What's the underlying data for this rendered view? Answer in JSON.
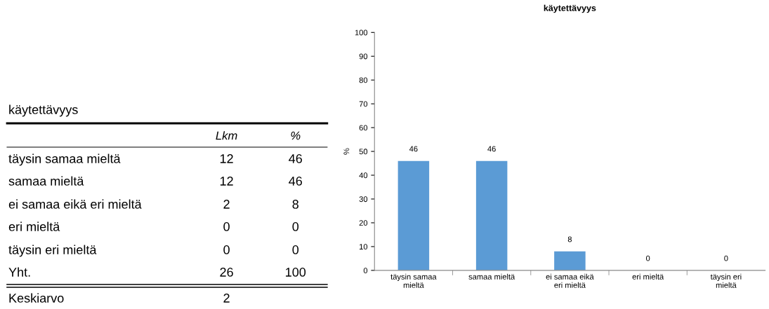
{
  "chart_data": [
    {
      "type": "other",
      "title": "käytettävyys",
      "data_labels": true,
      "categories": [
        "täysin samaa mieltä",
        "samaa mieltä",
        "ei samaa eikä eri mieltä",
        "eri mieltä",
        "täysin eri mieltä",
        "Yht.",
        "Keskiarvo"
      ],
      "series": [
        {
          "name": "Lkm",
          "values": [
            12,
            12,
            2,
            0,
            0,
            26,
            2
          ]
        },
        {
          "name": "%",
          "values": [
            46,
            46,
            8,
            0,
            0,
            100,
            null
          ]
        }
      ]
    },
    {
      "type": "bar",
      "title": "käytettävyys",
      "ylabel": "%",
      "categories": [
        "täysin samaa mieltä",
        "samaa mieltä",
        "ei samaa eikä eri mieltä",
        "eri mieltä",
        "täysin eri mieltä"
      ],
      "values": [
        46,
        46,
        8,
        0,
        0
      ],
      "color": "#5b9bd5",
      "ylim": [
        0,
        100
      ],
      "yticks": [
        0,
        10,
        20,
        30,
        40,
        50,
        60,
        70,
        80,
        90,
        100
      ],
      "grid": false,
      "legend": false,
      "data_labels": true
    }
  ]
}
